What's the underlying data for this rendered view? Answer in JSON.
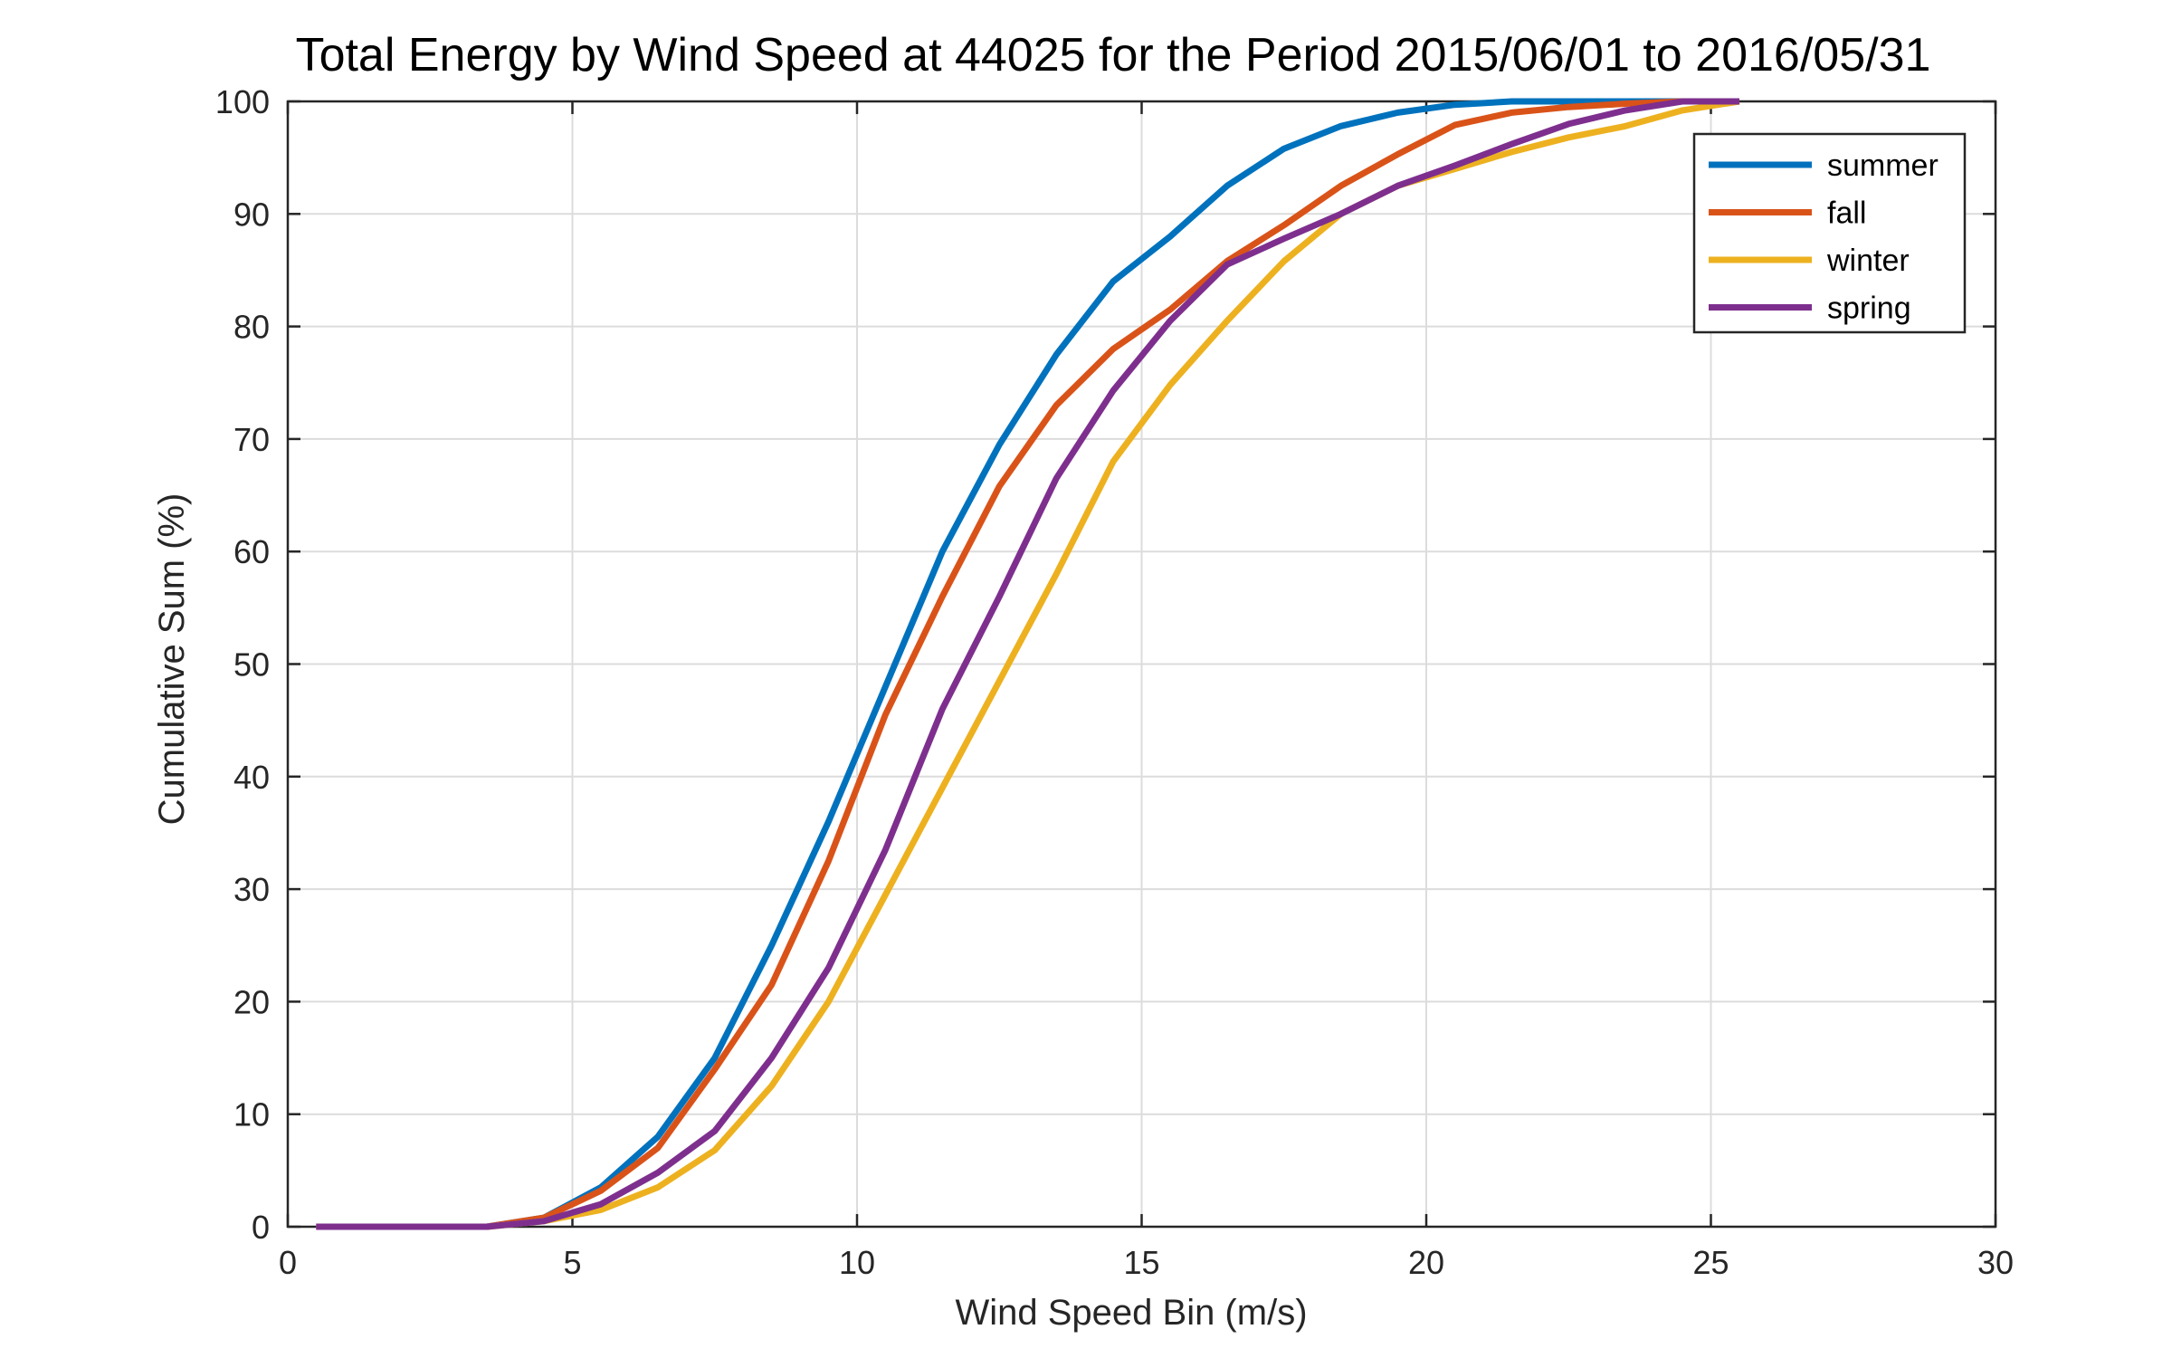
{
  "chart_data": {
    "type": "line",
    "title": "Total Energy by Wind Speed at 44025 for the Period 2015/06/01 to 2016/05/31",
    "xlabel": "Wind Speed Bin (m/s)",
    "ylabel": "Cumulative Sum (%)",
    "xlim": [
      0,
      30
    ],
    "ylim": [
      0,
      100
    ],
    "xticks": [
      0,
      5,
      10,
      15,
      20,
      25,
      30
    ],
    "yticks": [
      0,
      10,
      20,
      30,
      40,
      50,
      60,
      70,
      80,
      90,
      100
    ],
    "grid": true,
    "legend_position": "top-right",
    "x": [
      0.5,
      1.5,
      2.5,
      3.5,
      4.5,
      5.5,
      6.5,
      7.5,
      8.5,
      9.5,
      10.5,
      11.5,
      12.5,
      13.5,
      14.5,
      15.5,
      16.5,
      17.5,
      18.5,
      19.5,
      20.5,
      21.5,
      22.5,
      23.5,
      24.5,
      25.5
    ],
    "series": [
      {
        "name": "summer",
        "color": "#0072BD",
        "values": [
          0,
          0,
          0,
          0,
          0.8,
          3.5,
          8.0,
          15.0,
          25.0,
          36.0,
          48.0,
          60.0,
          69.5,
          77.5,
          84.0,
          88.0,
          92.5,
          95.8,
          97.8,
          99.0,
          99.7,
          100,
          100,
          100,
          100,
          100
        ]
      },
      {
        "name": "fall",
        "color": "#D95319",
        "values": [
          0,
          0,
          0,
          0,
          0.8,
          3.2,
          7.0,
          14.0,
          21.5,
          32.5,
          45.5,
          56.0,
          65.8,
          73.0,
          78.0,
          81.5,
          85.8,
          89.0,
          92.5,
          95.3,
          97.9,
          99.0,
          99.5,
          99.8,
          100,
          100
        ]
      },
      {
        "name": "winter",
        "color": "#EDB120",
        "values": [
          0,
          0,
          0,
          0,
          0.5,
          1.5,
          3.5,
          6.8,
          12.5,
          20.0,
          29.5,
          39.0,
          48.5,
          58.0,
          68.0,
          74.8,
          80.5,
          85.8,
          90.0,
          92.5,
          94.0,
          95.5,
          96.8,
          97.8,
          99.2,
          100
        ]
      },
      {
        "name": "spring",
        "color": "#7E2F8E",
        "values": [
          0,
          0,
          0,
          0,
          0.5,
          2.0,
          4.8,
          8.5,
          15.0,
          23.0,
          33.5,
          46.0,
          56.0,
          66.5,
          74.3,
          80.5,
          85.5,
          87.8,
          90.0,
          92.5,
          94.3,
          96.2,
          98.0,
          99.2,
          100,
          100
        ]
      }
    ]
  }
}
